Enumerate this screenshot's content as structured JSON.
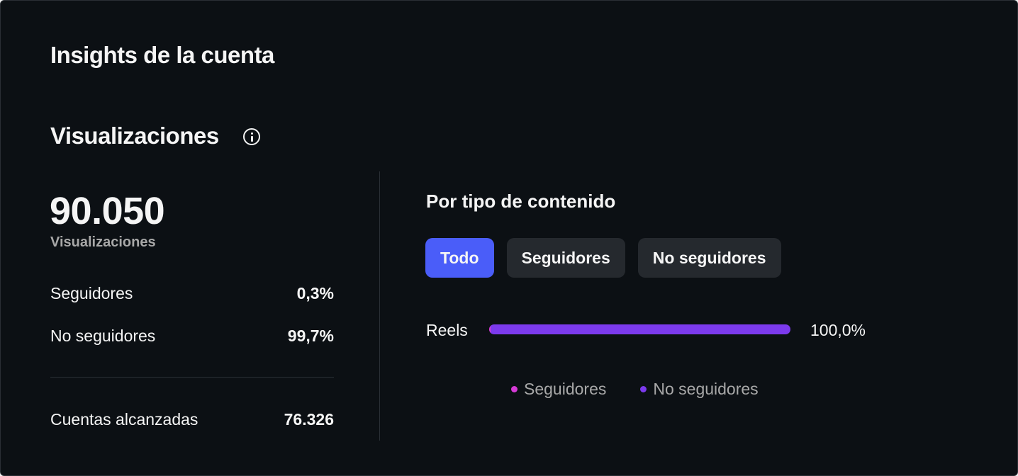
{
  "header": {
    "title": "Insights de la cuenta"
  },
  "section": {
    "title": "Visualizaciones",
    "info_icon": "info-circle-icon"
  },
  "summary": {
    "total_value": "90.050",
    "total_caption": "Visualizaciones",
    "rows": [
      {
        "label": "Seguidores",
        "value": "0,3%"
      },
      {
        "label": "No seguidores",
        "value": "99,7%"
      }
    ],
    "reach": {
      "label": "Cuentas alcanzadas",
      "value": "76.326"
    }
  },
  "breakdown": {
    "title": "Por tipo de contenido",
    "tabs": [
      {
        "label": "Todo",
        "active": true
      },
      {
        "label": "Seguidores",
        "active": false
      },
      {
        "label": "No seguidores",
        "active": false
      }
    ],
    "bars": [
      {
        "label": "Reels",
        "value_text": "100,0%",
        "followers_share": 0.003,
        "non_followers_share": 0.997
      }
    ],
    "legend": [
      {
        "label": "Seguidores",
        "color": "#d63ad6"
      },
      {
        "label": "No seguidores",
        "color": "#7c3aed"
      }
    ]
  },
  "colors": {
    "background": "#0c1014",
    "accent": "#4a5df9",
    "followers": "#d63ad6",
    "non_followers": "#7c3aed",
    "muted_text": "#a8a8a8"
  }
}
